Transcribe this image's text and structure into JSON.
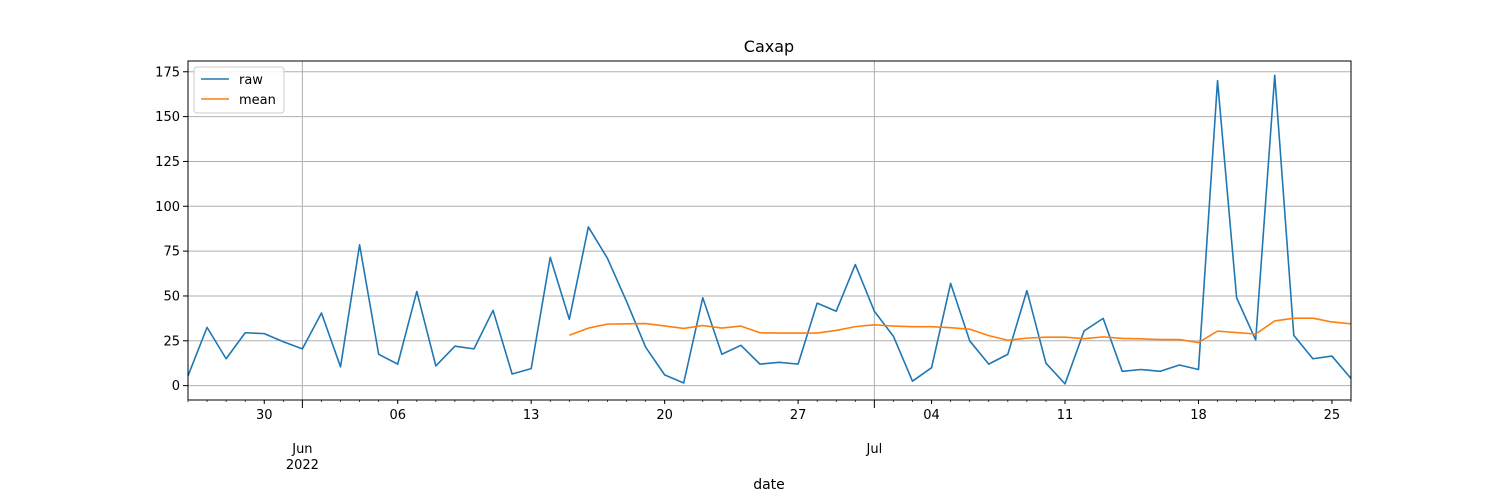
{
  "chart_data": {
    "type": "line",
    "title": "Сахар",
    "xlabel": "date",
    "ylabel": "",
    "ylim": [
      -8,
      181
    ],
    "xlim": [
      "2022-05-26",
      "2022-07-26"
    ],
    "grid": true,
    "legend_position": "upper-left",
    "y_ticks": [
      0,
      25,
      50,
      75,
      100,
      125,
      150,
      175
    ],
    "x_minor_ticks": [
      {
        "date": "2022-05-30",
        "label": "30"
      },
      {
        "date": "2022-06-06",
        "label": "06"
      },
      {
        "date": "2022-06-13",
        "label": "13"
      },
      {
        "date": "2022-06-20",
        "label": "20"
      },
      {
        "date": "2022-06-27",
        "label": "27"
      },
      {
        "date": "2022-07-04",
        "label": "04"
      },
      {
        "date": "2022-07-11",
        "label": "11"
      },
      {
        "date": "2022-07-18",
        "label": "18"
      },
      {
        "date": "2022-07-25",
        "label": "25"
      }
    ],
    "x_major_ticks": [
      {
        "date": "2022-06-01",
        "label": "Jun",
        "sublabel": "2022"
      },
      {
        "date": "2022-07-01",
        "label": "Jul",
        "sublabel": ""
      }
    ],
    "start_date": "2022-05-26",
    "series": [
      {
        "name": "raw",
        "color": "#1f77b4",
        "values": [
          5.5,
          32.5,
          15,
          29.5,
          29,
          24.5,
          20.5,
          40.5,
          10.5,
          78.5,
          17.5,
          12,
          52.5,
          11,
          22,
          20.5,
          42,
          6.5,
          9.5,
          71.5,
          37,
          88.5,
          71,
          47,
          21.5,
          6,
          1.5,
          49,
          17.5,
          22.5,
          12,
          13,
          12,
          46,
          41.5,
          67.5,
          41.5,
          27.5,
          2.5,
          10,
          57,
          25,
          12,
          17.5,
          53,
          12.5,
          1,
          30.5,
          37.5,
          8,
          9,
          8,
          11.5,
          9,
          170,
          49,
          25.5,
          173,
          28,
          15,
          16.5,
          4
        ]
      },
      {
        "name": "mean",
        "color": "#ff7f0e",
        "values": [
          null,
          null,
          null,
          null,
          null,
          null,
          null,
          null,
          null,
          null,
          null,
          null,
          null,
          null,
          null,
          null,
          null,
          null,
          null,
          null,
          28.1,
          32.1,
          34.3,
          34.5,
          34.6,
          33.3,
          31.9,
          33.5,
          32.1,
          33.2,
          29.5,
          29.3,
          29.3,
          29.3,
          30.8,
          32.9,
          33.9,
          33.2,
          32.9,
          32.9,
          32.3,
          31.5,
          27.9,
          25.3,
          26.5,
          27,
          27,
          26.2,
          27.2,
          26.3,
          26.1,
          25.7,
          25.7,
          24,
          30.4,
          29.6,
          28.8,
          36.1,
          37.6,
          37.6,
          35.5,
          34.5
        ]
      }
    ]
  }
}
